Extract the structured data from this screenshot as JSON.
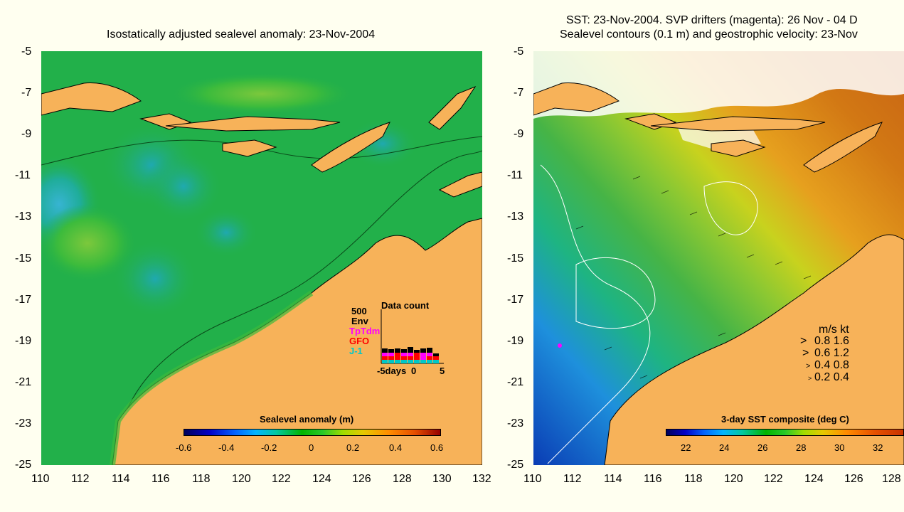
{
  "left_panel": {
    "title": "Isostatically adjusted sealevel anomaly: 23-Nov-2004",
    "y_ticks": [
      "-5",
      "-7",
      "-9",
      "-11",
      "-13",
      "-15",
      "-17",
      "-19",
      "-21",
      "-23",
      "-25"
    ],
    "x_ticks": [
      "110",
      "112",
      "114",
      "116",
      "118",
      "120",
      "122",
      "124",
      "126",
      "128",
      "130",
      "132"
    ],
    "colorbar": {
      "title": "Sealevel anomaly (m)",
      "ticks": [
        "-0.6",
        "-0.4",
        "-0.2",
        "0",
        "0.2",
        "0.4",
        "0.6"
      ]
    },
    "data_count": {
      "title": "Data count",
      "max_label": "500",
      "series": [
        "Env",
        "TpTdm",
        "GFO",
        "J-1"
      ],
      "series_colors": [
        "#000000",
        "#ff00ff",
        "#ff0000",
        "#00c8c8"
      ],
      "x_left": "-5days",
      "x_mid": "0",
      "x_right": "5"
    }
  },
  "right_panel": {
    "title_line1": "SST: 23-Nov-2004. SVP drifters (magenta): 26 Nov - 04 D",
    "title_line2": "Sealevel contours (0.1 m) and geostrophic velocity: 23-Nov",
    "y_ticks": [
      "-5",
      "-7",
      "-9",
      "-11",
      "-13",
      "-15",
      "-17",
      "-19",
      "-21",
      "-23",
      "-25"
    ],
    "x_ticks": [
      "110",
      "112",
      "114",
      "116",
      "118",
      "120",
      "122",
      "124",
      "126",
      "128"
    ],
    "colorbar": {
      "title": "3-day SST composite (deg C)",
      "ticks": [
        "22",
        "24",
        "26",
        "28",
        "30",
        "32"
      ]
    },
    "velocity_legend": {
      "header": "m/s  kt",
      "rows": [
        "0.8  1.6",
        "0.6  1.2",
        "0.4  0.8",
        "0.2  0.4"
      ]
    }
  },
  "colors": {
    "land": "#f7b259",
    "sea_green": "#22b04a",
    "background": "#fffff0"
  }
}
